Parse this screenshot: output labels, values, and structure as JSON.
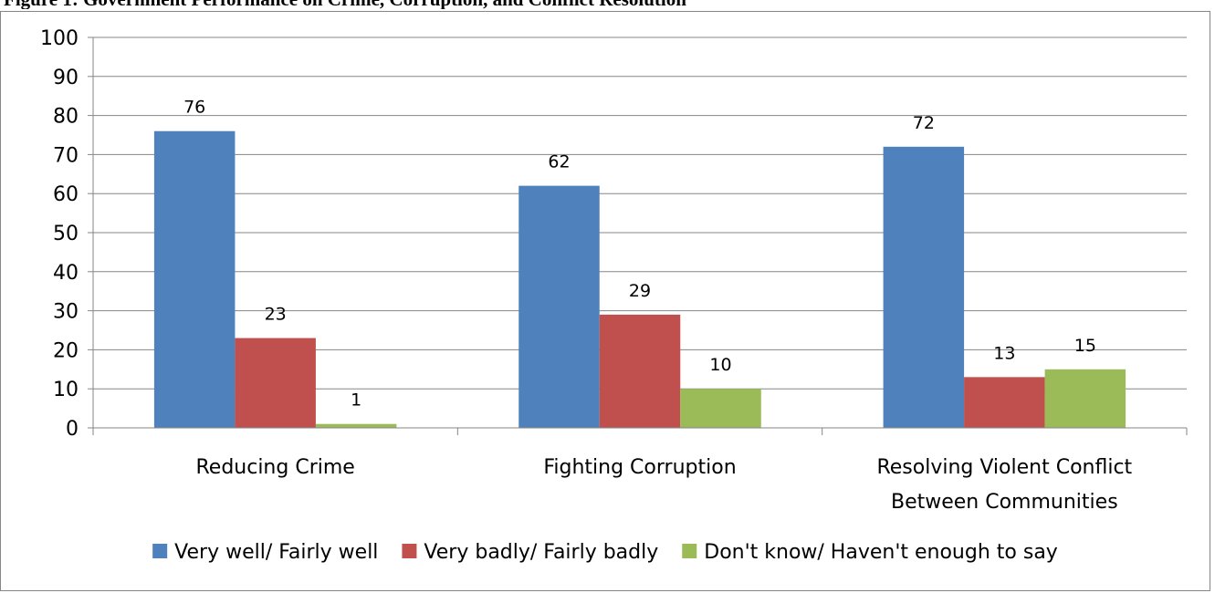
{
  "caption": "Figure 1: Government Performance on Crime, Corruption, and Conflict Resolution",
  "chart_data": {
    "type": "bar",
    "categories": [
      [
        "Reducing Crime"
      ],
      [
        "Fighting Corruption"
      ],
      [
        "Resolving Violent Conflict",
        "Between Communities"
      ]
    ],
    "series": [
      {
        "name": "Very well/ Fairly well",
        "color": "#4F81BD",
        "values": [
          76,
          62,
          72
        ]
      },
      {
        "name": "Very badly/ Fairly badly",
        "color": "#C0504D",
        "values": [
          23,
          29,
          13
        ]
      },
      {
        "name": "Don't know/ Haven't enough to say",
        "color": "#9BBB59",
        "values": [
          1,
          10,
          15
        ]
      }
    ],
    "ylim": [
      0,
      100
    ],
    "yticks": [
      0,
      10,
      20,
      30,
      40,
      50,
      60,
      70,
      80,
      90,
      100
    ],
    "grid": true,
    "legend_position": "bottom",
    "data_labels": true
  }
}
